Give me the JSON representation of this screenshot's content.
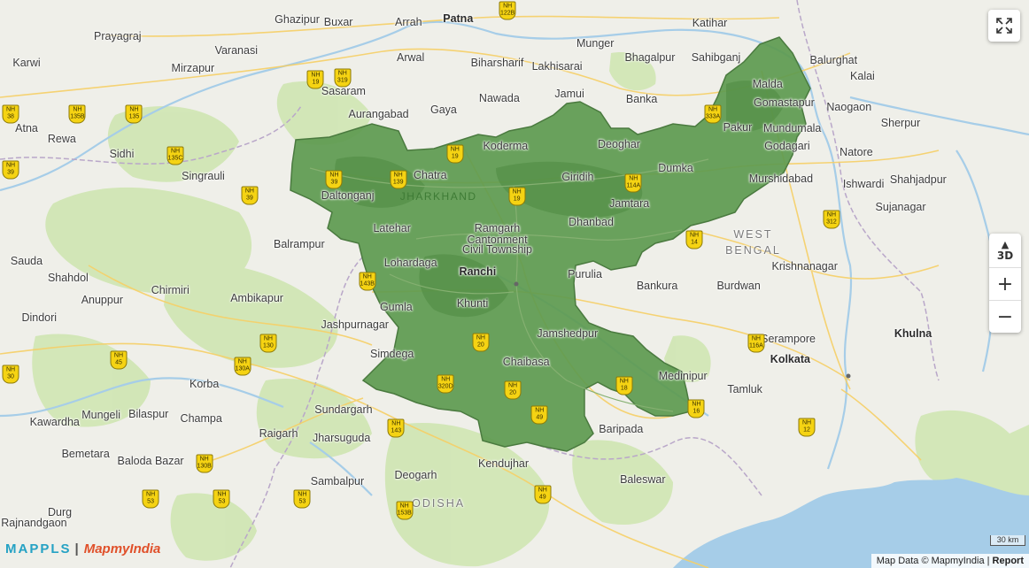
{
  "map": {
    "colors": {
      "land": "#efefe9",
      "water": "#a6cde8",
      "forest": "#cfe6b2",
      "highlight": "#5d9a4f",
      "highlight_border": "#4a7a3f"
    },
    "places": [
      {
        "name": "Ghazipur",
        "lon": 83.58,
        "lat": 25.58
      },
      {
        "name": "Buxar",
        "lon": 83.98,
        "lat": 25.56
      },
      {
        "name": "Arrah",
        "lon": 84.66,
        "lat": 25.56
      },
      {
        "name": "Patna",
        "lon": 85.14,
        "lat": 25.59,
        "major": true
      },
      {
        "name": "Katihar",
        "lon": 87.58,
        "lat": 25.55
      },
      {
        "name": "Prayagraj",
        "lon": 81.84,
        "lat": 25.43
      },
      {
        "name": "Varanasi",
        "lon": 82.99,
        "lat": 25.31
      },
      {
        "name": "Munger",
        "lon": 86.47,
        "lat": 25.37
      },
      {
        "name": "Sahibganj",
        "lon": 87.64,
        "lat": 25.25
      },
      {
        "name": "Balurghat",
        "lon": 88.78,
        "lat": 25.22
      },
      {
        "name": "Karwi",
        "lon": 80.9,
        "lat": 25.2
      },
      {
        "name": "Arwal",
        "lon": 84.68,
        "lat": 25.25
      },
      {
        "name": "Biharsharif",
        "lon": 85.52,
        "lat": 25.2
      },
      {
        "name": "Lakhisarai",
        "lon": 86.1,
        "lat": 25.17
      },
      {
        "name": "Bhagalpur",
        "lon": 87.0,
        "lat": 25.25
      },
      {
        "name": "Mirzapur",
        "lon": 82.57,
        "lat": 25.15
      },
      {
        "name": "Kalai",
        "lon": 89.06,
        "lat": 25.08
      },
      {
        "name": "Sasaram",
        "lon": 84.03,
        "lat": 24.95
      },
      {
        "name": "Malda",
        "lon": 88.14,
        "lat": 25.01
      },
      {
        "name": "Nawada",
        "lon": 85.54,
        "lat": 24.89
      },
      {
        "name": "Jamui",
        "lon": 86.22,
        "lat": 24.93
      },
      {
        "name": "Banka",
        "lon": 86.92,
        "lat": 24.88
      },
      {
        "name": "Gomastapur",
        "lon": 88.3,
        "lat": 24.85
      },
      {
        "name": "Naogaon",
        "lon": 88.93,
        "lat": 24.81
      },
      {
        "name": "Aurangabad",
        "lon": 84.37,
        "lat": 24.75
      },
      {
        "name": "Gaya",
        "lon": 85.0,
        "lat": 24.79
      },
      {
        "name": "Pakur",
        "lon": 87.85,
        "lat": 24.63
      },
      {
        "name": "Sherpur",
        "lon": 89.43,
        "lat": 24.67
      },
      {
        "name": "Mundumala",
        "lon": 88.38,
        "lat": 24.62
      },
      {
        "name": "Rewa",
        "lon": 81.3,
        "lat": 24.53
      },
      {
        "name": "Koderma",
        "lon": 85.6,
        "lat": 24.47
      },
      {
        "name": "Deoghar",
        "lon": 86.7,
        "lat": 24.48
      },
      {
        "name": "Godagari",
        "lon": 88.33,
        "lat": 24.47
      },
      {
        "name": "Sidhi",
        "lon": 81.88,
        "lat": 24.4
      },
      {
        "name": "Natore",
        "lon": 89.0,
        "lat": 24.41
      },
      {
        "name": "Dumka",
        "lon": 87.25,
        "lat": 24.27
      },
      {
        "name": "Singrauli",
        "lon": 82.67,
        "lat": 24.2
      },
      {
        "name": "Chatra",
        "lon": 84.87,
        "lat": 24.21
      },
      {
        "name": "Giridih",
        "lon": 86.3,
        "lat": 24.19
      },
      {
        "name": "Murshidabad",
        "lon": 88.27,
        "lat": 24.18
      },
      {
        "name": "Ishwardi",
        "lon": 89.07,
        "lat": 24.13
      },
      {
        "name": "Shahjadpur",
        "lon": 89.6,
        "lat": 24.17
      },
      {
        "name": "Daltonganj",
        "lon": 84.07,
        "lat": 24.03
      },
      {
        "name": "Jamtara",
        "lon": 86.8,
        "lat": 23.96
      },
      {
        "name": "Sujanagar",
        "lon": 89.43,
        "lat": 23.93
      },
      {
        "name": "Latehar",
        "lon": 84.5,
        "lat": 23.74
      },
      {
        "name": "Ramgarh",
        "lon": 85.52,
        "lat": 23.74
      },
      {
        "name": "Dhanbad",
        "lon": 86.43,
        "lat": 23.79
      },
      {
        "name": "Cantonment",
        "lon": 85.52,
        "lat": 23.64
      },
      {
        "name": "Balrampur",
        "lon": 83.6,
        "lat": 23.6
      },
      {
        "name": "Civil Township",
        "lon": 85.52,
        "lat": 23.55
      },
      {
        "name": "Lohardaga",
        "lon": 84.68,
        "lat": 23.43
      },
      {
        "name": "Purulia",
        "lon": 86.37,
        "lat": 23.33
      },
      {
        "name": "Krishnanagar",
        "lon": 88.5,
        "lat": 23.4
      },
      {
        "name": "Shahdol",
        "lon": 81.36,
        "lat": 23.3
      },
      {
        "name": "Ranchi",
        "lon": 85.33,
        "lat": 23.35,
        "major": true
      },
      {
        "name": "Bankura",
        "lon": 87.07,
        "lat": 23.23
      },
      {
        "name": "Burdwan",
        "lon": 87.86,
        "lat": 23.23
      },
      {
        "name": "Chirmiri",
        "lon": 82.35,
        "lat": 23.19
      },
      {
        "name": "Ambikapur",
        "lon": 83.19,
        "lat": 23.12
      },
      {
        "name": "Anuppur",
        "lon": 81.69,
        "lat": 23.1
      },
      {
        "name": "Khunti",
        "lon": 85.28,
        "lat": 23.07
      },
      {
        "name": "Gumla",
        "lon": 84.54,
        "lat": 23.04
      },
      {
        "name": "Dindori",
        "lon": 81.08,
        "lat": 22.94
      },
      {
        "name": "Jashpurnagar",
        "lon": 84.14,
        "lat": 22.88
      },
      {
        "name": "Jamshedpur",
        "lon": 86.2,
        "lat": 22.8
      },
      {
        "name": "Serampore",
        "lon": 88.34,
        "lat": 22.75
      },
      {
        "name": "Khulna",
        "lon": 89.55,
        "lat": 22.8,
        "major": true
      },
      {
        "name": "Simdega",
        "lon": 84.5,
        "lat": 22.62
      },
      {
        "name": "Chaibasa",
        "lon": 85.8,
        "lat": 22.55
      },
      {
        "name": "Kolkata",
        "lon": 88.36,
        "lat": 22.57,
        "major": true
      },
      {
        "name": "Medinipur",
        "lon": 87.32,
        "lat": 22.42
      },
      {
        "name": "Korba",
        "lon": 82.68,
        "lat": 22.35
      },
      {
        "name": "Tamluk",
        "lon": 87.92,
        "lat": 22.3
      },
      {
        "name": "Sundargarh",
        "lon": 84.03,
        "lat": 22.12
      },
      {
        "name": "Mungeli",
        "lon": 81.68,
        "lat": 22.07
      },
      {
        "name": "Bilaspur",
        "lon": 82.14,
        "lat": 22.08
      },
      {
        "name": "Champa",
        "lon": 82.65,
        "lat": 22.04
      },
      {
        "name": "Kawardha",
        "lon": 81.23,
        "lat": 22.01
      },
      {
        "name": "Raigarh",
        "lon": 83.4,
        "lat": 21.9
      },
      {
        "name": "Jharsuguda",
        "lon": 84.01,
        "lat": 21.86
      },
      {
        "name": "Baripada",
        "lon": 86.72,
        "lat": 21.94
      },
      {
        "name": "Bemetara",
        "lon": 81.53,
        "lat": 21.72
      },
      {
        "name": "Baloda Bazar",
        "lon": 82.16,
        "lat": 21.66
      },
      {
        "name": "Kendujhar",
        "lon": 85.58,
        "lat": 21.63
      },
      {
        "name": "Deogarh",
        "lon": 84.73,
        "lat": 21.53
      },
      {
        "name": "Baleswar",
        "lon": 86.93,
        "lat": 21.49
      },
      {
        "name": "Sambalpur",
        "lon": 83.97,
        "lat": 21.47
      },
      {
        "name": "Durg",
        "lon": 81.28,
        "lat": 21.19
      },
      {
        "name": "Rajnandgaon",
        "lon": 81.03,
        "lat": 21.1
      },
      {
        "name": "Atna",
        "lon": 80.78,
        "lat": 24.62
      },
      {
        "name": "Sauda",
        "lon": 80.78,
        "lat": 23.45
      }
    ],
    "state_labels": [
      {
        "name": "JHARKHAND",
        "lon": 84.95,
        "lat": 24.02,
        "jh": true
      },
      {
        "name": "WEST",
        "lon": 88.0,
        "lat": 23.68
      },
      {
        "name": "BENGAL",
        "lon": 88.0,
        "lat": 23.54
      },
      {
        "name": "ODISHA",
        "lon": 84.95,
        "lat": 21.27
      }
    ],
    "highways": [
      {
        "num": "122B",
        "lon": 85.62,
        "lat": 25.68
      },
      {
        "num": "19",
        "lon": 83.76,
        "lat": 25.05
      },
      {
        "num": "319",
        "lon": 84.02,
        "lat": 25.07
      },
      {
        "name": "NH",
        "num": "135B",
        "lon": 81.45,
        "lat": 24.75
      },
      {
        "num": "135",
        "lon": 82.0,
        "lat": 24.75
      },
      {
        "num": "38",
        "lon": 80.72,
        "lat": 24.75
      },
      {
        "num": "19",
        "lon": 85.11,
        "lat": 24.4
      },
      {
        "num": "135C",
        "lon": 82.4,
        "lat": 24.38
      },
      {
        "num": "39",
        "lon": 80.72,
        "lat": 24.26
      },
      {
        "num": "39",
        "lon": 83.12,
        "lat": 24.03
      },
      {
        "num": "39",
        "lon": 83.94,
        "lat": 24.17
      },
      {
        "num": "139",
        "lon": 84.56,
        "lat": 24.17
      },
      {
        "num": "19",
        "lon": 85.71,
        "lat": 24.02
      },
      {
        "num": "114A",
        "lon": 86.84,
        "lat": 24.14
      },
      {
        "num": "333A",
        "lon": 87.61,
        "lat": 24.75
      },
      {
        "num": "312",
        "lon": 88.76,
        "lat": 23.82
      },
      {
        "num": "14",
        "lon": 87.43,
        "lat": 23.64
      },
      {
        "num": "143B",
        "lon": 84.26,
        "lat": 23.27
      },
      {
        "num": "130",
        "lon": 83.3,
        "lat": 22.71
      },
      {
        "num": "45",
        "lon": 81.85,
        "lat": 22.56
      },
      {
        "num": "30",
        "lon": 80.8,
        "lat": 22.44
      },
      {
        "num": "130A",
        "lon": 83.05,
        "lat": 22.51
      },
      {
        "num": "20",
        "lon": 85.36,
        "lat": 22.72
      },
      {
        "num": "116A",
        "lon": 88.03,
        "lat": 22.71
      },
      {
        "num": "320D",
        "lon": 85.02,
        "lat": 22.35
      },
      {
        "num": "20",
        "lon": 85.67,
        "lat": 22.29
      },
      {
        "num": "18",
        "lon": 86.75,
        "lat": 22.33
      },
      {
        "num": "16",
        "lon": 87.45,
        "lat": 22.13
      },
      {
        "num": "49",
        "lon": 85.93,
        "lat": 22.07
      },
      {
        "num": "143",
        "lon": 84.54,
        "lat": 21.95
      },
      {
        "num": "12",
        "lon": 88.52,
        "lat": 21.96
      },
      {
        "num": "130B",
        "lon": 82.68,
        "lat": 21.63
      },
      {
        "num": "53",
        "lon": 82.85,
        "lat": 21.31
      },
      {
        "num": "53",
        "lon": 83.63,
        "lat": 21.31
      },
      {
        "num": "53",
        "lon": 82.16,
        "lat": 21.31
      },
      {
        "num": "153B",
        "lon": 84.62,
        "lat": 21.21
      },
      {
        "num": "49",
        "lon": 85.96,
        "lat": 21.35
      }
    ],
    "nh_label": "NH"
  },
  "controls": {
    "fullscreen_icon": "expand-icon",
    "btn_3d_label": "3D",
    "zoom_in": "+",
    "zoom_out": "−"
  },
  "scale": {
    "label": "30 km"
  },
  "branding": {
    "mappls": "MAPPLS",
    "mapmyindia": "MapmyIndia"
  },
  "attribution": {
    "text": "Map Data © MapmyIndia |",
    "report": "Report"
  }
}
